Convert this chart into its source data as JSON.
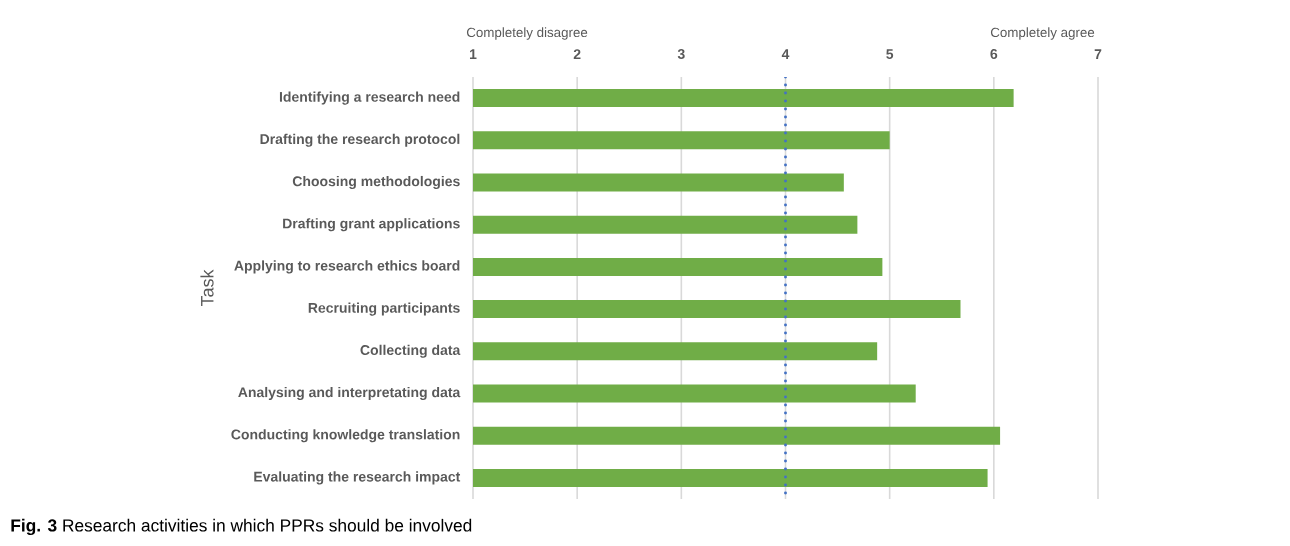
{
  "chart_data": {
    "type": "bar",
    "orientation": "horizontal",
    "ylabel": "Task",
    "categories": [
      "Identifying a research need",
      "Drafting the research protocol",
      "Choosing methodologies",
      "Drafting grant applications",
      "Applying to research ethics board",
      "Recruiting participants",
      "Collecting data",
      "Analysing and interpretating data",
      "Conducting knowledge translation",
      "Evaluating the research impact"
    ],
    "values": [
      6.19,
      5.0,
      4.56,
      4.69,
      4.93,
      5.68,
      4.88,
      5.25,
      6.06,
      5.94
    ],
    "color": "#70ad47",
    "xlim": [
      1,
      7
    ],
    "xticks": [
      1,
      2,
      3,
      4,
      5,
      6,
      7
    ],
    "grid": "x",
    "ref_lines": [
      {
        "axis": "x",
        "value": 4,
        "color": "#4472c4",
        "line_style": "dotted"
      }
    ],
    "annotations": [
      "Completely disagree",
      "Completely agree",
      "**Fig. 3** Research activities in which PPRs should be involved"
    ]
  }
}
